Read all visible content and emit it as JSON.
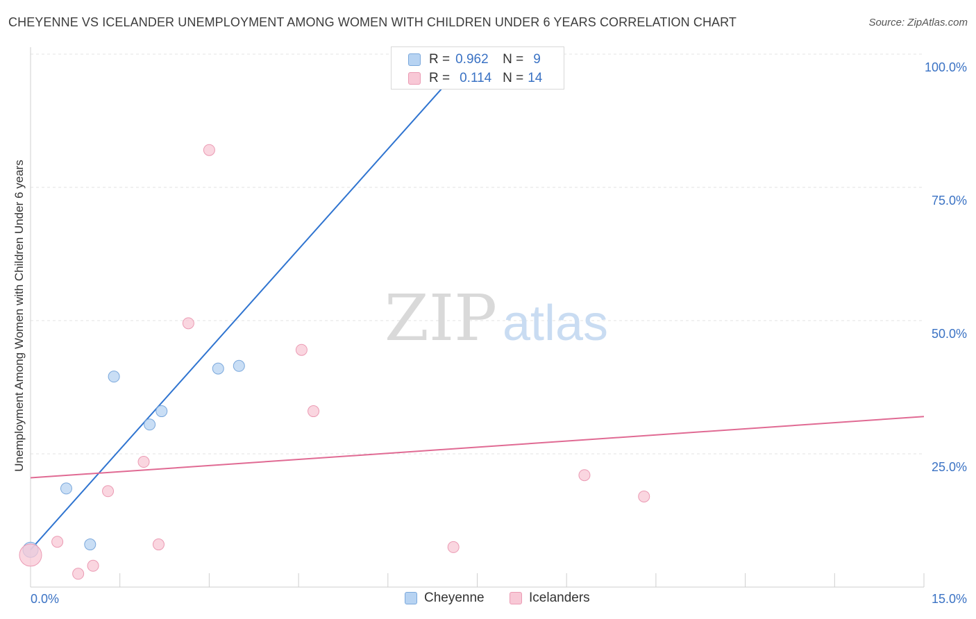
{
  "title": "CHEYENNE VS ICELANDER UNEMPLOYMENT AMONG WOMEN WITH CHILDREN UNDER 6 YEARS CORRELATION CHART",
  "source": "Source: ZipAtlas.com",
  "watermark": {
    "zip": "ZIP",
    "atlas": "atlas"
  },
  "colors": {
    "cheyenne_fill": "#b7d3f2",
    "cheyenne_stroke": "#7aa8dc",
    "cheyenne_line": "#2f74d0",
    "icelanders_fill": "#f8c8d6",
    "icelanders_stroke": "#eb9ab3",
    "icelanders_line": "#e06a93",
    "axis_label": "#3a72c4"
  },
  "stats": [
    {
      "r_label": "R =",
      "r_value": "0.962",
      "n_label": "N =",
      "n_value": "9"
    },
    {
      "r_label": "R =",
      "r_value": "0.114",
      "n_label": "N =",
      "n_value": "14"
    }
  ],
  "chart_data": {
    "type": "scatter",
    "title": "CHEYENNE VS ICELANDER UNEMPLOYMENT AMONG WOMEN WITH CHILDREN UNDER 6 YEARS CORRELATION CHART",
    "xlabel": "",
    "ylabel": "Unemployment Among Women with Children Under 6 years",
    "xlim": [
      0,
      15
    ],
    "ylim": [
      0,
      100
    ],
    "x_tick_labels": [
      "0.0%",
      "15.0%"
    ],
    "y_tick_labels": [
      "25.0%",
      "50.0%",
      "75.0%",
      "100.0%"
    ],
    "y_ticks": [
      25,
      50,
      75,
      100
    ],
    "grid": true,
    "legend_position": "bottom",
    "series": [
      {
        "name": "Cheyenne",
        "points": [
          {
            "x": 0.0,
            "y": 7.0
          },
          {
            "x": 0.6,
            "y": 18.5
          },
          {
            "x": 1.0,
            "y": 8.0
          },
          {
            "x": 1.4,
            "y": 39.5
          },
          {
            "x": 2.0,
            "y": 30.5
          },
          {
            "x": 2.2,
            "y": 33.0
          },
          {
            "x": 3.15,
            "y": 41.0
          },
          {
            "x": 3.5,
            "y": 41.5
          },
          {
            "x": 7.5,
            "y": 100.0
          }
        ],
        "trend": {
          "x": [
            0.0,
            7.5
          ],
          "y": [
            7.0,
            101.0
          ]
        }
      },
      {
        "name": "Icelanders",
        "points": [
          {
            "x": 0.0,
            "y": 6.0
          },
          {
            "x": 0.45,
            "y": 8.5
          },
          {
            "x": 0.8,
            "y": 2.5
          },
          {
            "x": 1.05,
            "y": 4.0
          },
          {
            "x": 1.3,
            "y": 18.0
          },
          {
            "x": 1.9,
            "y": 23.5
          },
          {
            "x": 2.15,
            "y": 8.0
          },
          {
            "x": 2.65,
            "y": 49.5
          },
          {
            "x": 3.0,
            "y": 82.0
          },
          {
            "x": 4.55,
            "y": 44.5
          },
          {
            "x": 4.75,
            "y": 33.0
          },
          {
            "x": 7.1,
            "y": 7.5
          },
          {
            "x": 9.3,
            "y": 21.0
          },
          {
            "x": 10.3,
            "y": 17.0
          }
        ],
        "trend": {
          "x": [
            0.0,
            15.0
          ],
          "y": [
            20.5,
            32.0
          ]
        }
      }
    ]
  }
}
